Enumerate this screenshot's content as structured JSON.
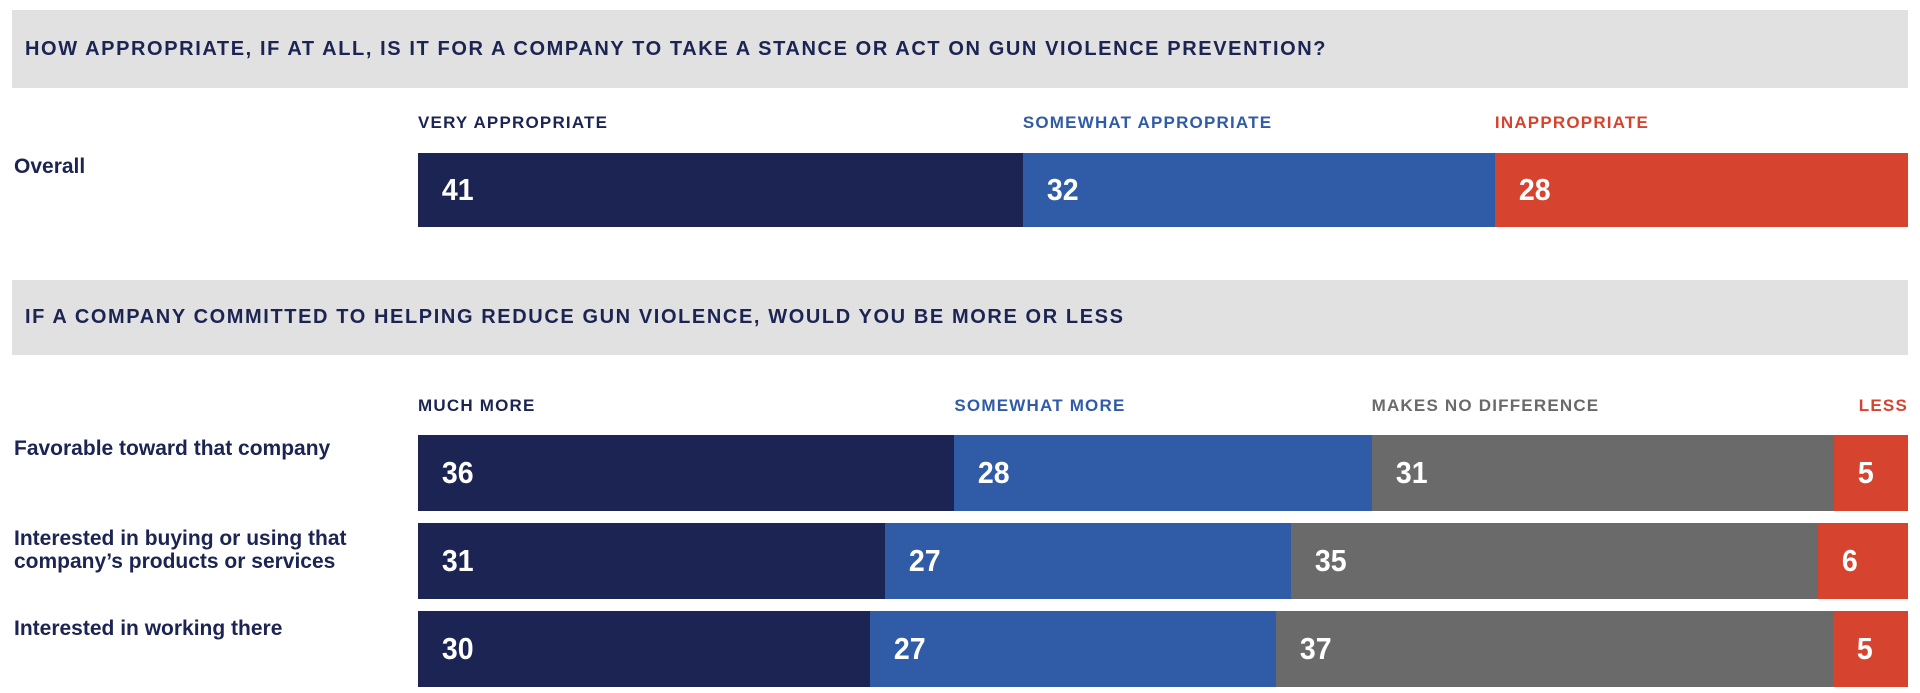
{
  "colors": {
    "navy": "#1b2452",
    "blue": "#2f5ba7",
    "gray": "#6a6a6a",
    "red": "#d6432e",
    "band_background": "#e1e1e1",
    "value_text": "#ffffff",
    "page_background": "#ffffff"
  },
  "chart_data": [
    {
      "type": "bar",
      "variant": "horizontal-stacked-100",
      "title": "HOW APPROPRIATE, IF AT ALL, IS IT FOR A COMPANY TO TAKE A STANCE OR ACT ON GUN VIOLENCE PREVENTION?",
      "categories": [
        "Overall"
      ],
      "series": [
        {
          "name": "VERY APPROPRIATE",
          "color": "#1b2452",
          "values": [
            41
          ]
        },
        {
          "name": "SOMEWHAT APPROPRIATE",
          "color": "#2f5ba7",
          "values": [
            32
          ]
        },
        {
          "name": "INAPPROPRIATE",
          "color": "#d6432e",
          "values": [
            28
          ]
        }
      ],
      "legend_position": "top",
      "value_labels": "inside-left",
      "last_legend_right_aligned": false
    },
    {
      "type": "bar",
      "variant": "horizontal-stacked-100",
      "title": "IF A COMPANY COMMITTED TO HELPING REDUCE GUN VIOLENCE, WOULD YOU BE MORE OR LESS",
      "categories": [
        "Favorable toward that company",
        "Interested in buying or using that\ncompany’s products or services",
        "Interested in working there"
      ],
      "series": [
        {
          "name": "MUCH MORE",
          "color": "#1b2452",
          "values": [
            36,
            31,
            30
          ]
        },
        {
          "name": "SOMEWHAT MORE",
          "color": "#2f5ba7",
          "values": [
            28,
            27,
            27
          ]
        },
        {
          "name": "MAKES NO DIFFERENCE",
          "color": "#6a6a6a",
          "values": [
            31,
            35,
            37
          ]
        },
        {
          "name": "LESS",
          "color": "#d6432e",
          "values": [
            5,
            6,
            5
          ]
        }
      ],
      "legend_position": "top",
      "value_labels": "inside-left",
      "last_legend_right_aligned": true
    }
  ]
}
